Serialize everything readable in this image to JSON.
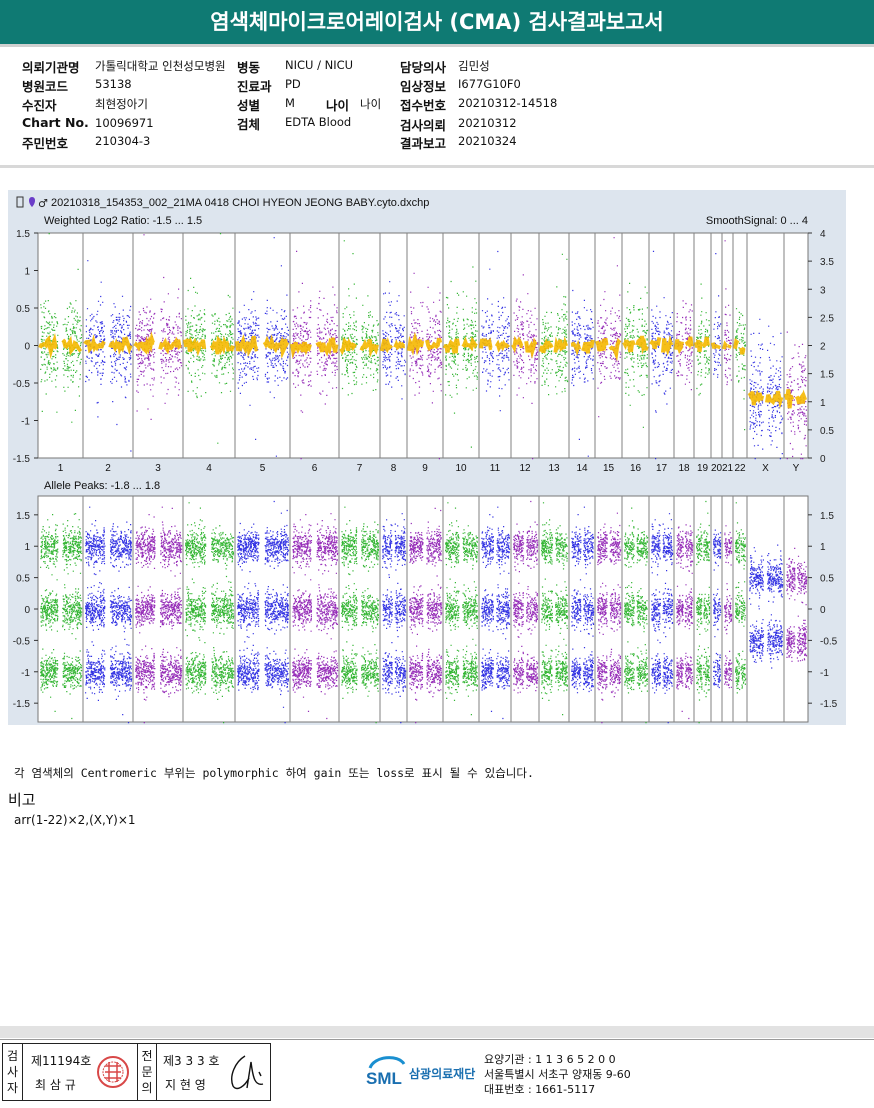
{
  "report": {
    "title": "염색체마이크로어레이검사 (CMA) 검사결과보고서"
  },
  "info": {
    "institution_label": "의뢰기관명",
    "institution_value": "가톨릭대학교 인천성모병원",
    "ward_label": "병동",
    "ward_value": "NICU / NICU",
    "doctor_label": "담당의사",
    "doctor_value": "김민성",
    "hospital_code_label": "병원코드",
    "hospital_code_value": "53138",
    "department_label": "진료과",
    "department_value": "PD",
    "clinical_info_label": "임상정보",
    "clinical_info_value": "I677G10F0",
    "patient_label": "수진자",
    "patient_value": "최현정아기",
    "sex_label": "성별",
    "sex_value": "M",
    "age_label": "나이",
    "age_value": "나이",
    "receipt_no_label": "접수번호",
    "receipt_no_value": "20210312-14518",
    "chart_no_label": "Chart No.",
    "chart_no_value": "10096971",
    "specimen_label": "검체",
    "specimen_value": "EDTA Blood",
    "request_date_label": "검사의뢰",
    "request_date_value": "20210312",
    "id_label": "주민번호",
    "id_value": "210304-3",
    "report_date_label": "결과보고",
    "report_date_value": "20210324"
  },
  "chart_data": [
    {
      "type": "scatter",
      "file_title": "20210318_154353_002_21MA 0418 CHOI HYEON JEONG BABY.cyto.dxchp",
      "left_label": "Weighted Log2 Ratio: -1.5 ... 1.5",
      "right_label": "SmoothSignal: 0 ... 4",
      "ylim": [
        -1.5,
        1.5
      ],
      "y2lim": [
        0,
        4
      ],
      "y_ticks": [
        "1.5",
        "1",
        "0.5",
        "0",
        "-0.5",
        "-1",
        "-1.5"
      ],
      "y2_ticks": [
        "4",
        "3.5",
        "3",
        "2.5",
        "2",
        "1.5",
        "1",
        "0.5",
        "0"
      ],
      "chromosomes": [
        "1",
        "2",
        "3",
        "4",
        "5",
        "6",
        "7",
        "8",
        "9",
        "10",
        "11",
        "12",
        "13",
        "14",
        "15",
        "16",
        "17",
        "18",
        "19",
        "20",
        "21",
        "22",
        "X",
        "Y"
      ],
      "series": [
        {
          "values": [
            0,
            0,
            0,
            0,
            0,
            0,
            0,
            0,
            0,
            0,
            0,
            0,
            0,
            0,
            0,
            0,
            0,
            0,
            0,
            0,
            0,
            0,
            -0.7,
            -0.7
          ]
        }
      ],
      "colors": {
        "green": "#1fae1f",
        "blue": "#1d1de0",
        "purple": "#8b17b0",
        "smooth": "#f5b800",
        "grid": "#808080"
      }
    },
    {
      "type": "scatter",
      "left_label": "Allele Peaks: -1.8 ... 1.8",
      "y_ticks": [
        "1.5",
        "1",
        "0.5",
        "0",
        "-0.5",
        "-1",
        "-1.5"
      ],
      "y2_ticks": [
        "1.5",
        "1",
        "0.5",
        "0",
        "-0.5",
        "-1",
        "-1.5"
      ],
      "ylim": [
        -1.8,
        1.8
      ],
      "peaks_autosome": [
        1.0,
        0.0,
        -1.0
      ],
      "peaks_sex": [
        0.5,
        -0.5
      ]
    }
  ],
  "notes": {
    "centromere_note": "각 염색체의 Centromeric 부위는 polymorphic 하여 gain 또는 loss로 표시 될 수 있습니다.",
    "remark_label": "비고",
    "remark_value": "arr(1-22)×2,(X,Y)×1"
  },
  "footer": {
    "examiner_vlabel": "검사자",
    "examiner_license": "제11194호",
    "examiner_name": "최 삼 규",
    "specialist_vlabel": "전문의",
    "specialist_license": "제3 3 3 호",
    "specialist_name": "지 현 영",
    "org_logo": "SML",
    "org_name": "삼광의료재단",
    "care_inst": "요양기관 : 1 1 3 6 5 2 0 0",
    "address": "서울특별시 서초구 양재동 9-60",
    "phone": "대표번호 : 1661-5117"
  }
}
